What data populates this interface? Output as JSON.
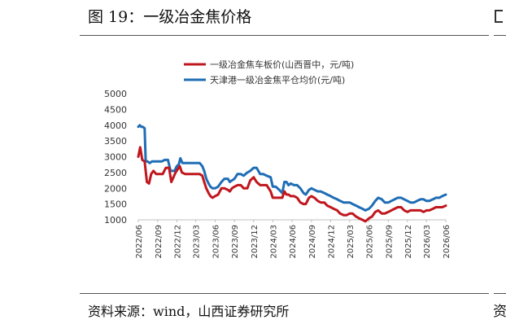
{
  "figure": {
    "title": "图 19：一级冶金焦价格",
    "source": "资料来源：wind，山西证券研究所",
    "edge_glyph": "资"
  },
  "chart_data": {
    "type": "line",
    "title": "",
    "xlabel": "",
    "ylabel": "",
    "ylim": [
      1000,
      5000
    ],
    "yticks": [
      1000,
      1500,
      2000,
      2500,
      3000,
      3500,
      4000,
      4500,
      5000
    ],
    "xlim": [
      "2022-06",
      "2026-06"
    ],
    "xticks": [
      "2022/06",
      "2022/09",
      "2022/12",
      "2023/03",
      "2023/06",
      "2023/09",
      "2023/12",
      "2024/03",
      "2024/06",
      "2024/09",
      "2024/12",
      "2025/03",
      "2025/06",
      "2025/09",
      "2025/12",
      "2026/03",
      "2026/06"
    ],
    "grid": false,
    "legend_position": "top",
    "series": [
      {
        "name": "一级冶金焦车板价(山西晋中，元/吨)",
        "color": "#C0161D",
        "x": [
          "2022-06-01",
          "2022-06-10",
          "2022-06-20",
          "2022-07-01",
          "2022-07-12",
          "2022-07-22",
          "2022-08-01",
          "2022-08-12",
          "2022-08-25",
          "2022-09-10",
          "2022-09-25",
          "2022-10-10",
          "2022-10-25",
          "2022-11-05",
          "2022-11-15",
          "2022-11-25",
          "2022-12-05",
          "2022-12-15",
          "2022-12-25",
          "2023-01-10",
          "2023-02-01",
          "2023-02-20",
          "2023-03-10",
          "2023-03-20",
          "2023-04-01",
          "2023-04-10",
          "2023-04-20",
          "2023-05-01",
          "2023-05-10",
          "2023-05-20",
          "2023-06-01",
          "2023-06-15",
          "2023-07-01",
          "2023-07-15",
          "2023-08-01",
          "2023-08-10",
          "2023-08-20",
          "2023-09-01",
          "2023-09-15",
          "2023-10-01",
          "2023-10-15",
          "2023-11-01",
          "2023-11-15",
          "2023-12-01",
          "2023-12-15",
          "2024-01-01",
          "2024-01-15",
          "2024-02-01",
          "2024-02-20",
          "2024-03-01",
          "2024-03-15",
          "2024-04-01",
          "2024-04-15",
          "2024-04-25",
          "2024-05-05",
          "2024-05-15",
          "2024-05-25",
          "2024-06-10",
          "2024-06-25",
          "2024-07-10",
          "2024-07-25",
          "2024-08-05",
          "2024-08-20",
          "2024-09-01",
          "2024-09-15",
          "2024-10-01",
          "2024-10-15",
          "2024-11-01",
          "2024-11-15",
          "2024-12-01",
          "2024-12-15",
          "2025-01-01",
          "2025-01-15",
          "2025-02-01",
          "2025-02-15",
          "2025-03-01",
          "2025-03-15",
          "2025-04-01",
          "2025-04-15",
          "2025-05-01",
          "2025-05-15",
          "2025-06-01",
          "2025-06-15",
          "2025-07-01",
          "2025-07-15",
          "2025-08-01",
          "2025-08-15",
          "2025-09-01",
          "2025-09-15",
          "2025-10-01",
          "2025-10-15",
          "2025-11-01",
          "2025-11-15",
          "2025-12-01",
          "2025-12-15",
          "2026-01-01",
          "2026-01-15",
          "2026-02-01",
          "2026-02-15",
          "2026-03-01",
          "2026-03-15",
          "2026-04-01",
          "2026-04-15",
          "2026-05-01",
          "2026-05-15",
          "2026-06-01"
        ],
        "y": [
          3000,
          3300,
          2900,
          2850,
          2200,
          2150,
          2450,
          2550,
          2450,
          2450,
          2450,
          2650,
          2650,
          2200,
          2350,
          2500,
          2600,
          2700,
          2500,
          2450,
          2450,
          2450,
          2450,
          2450,
          2400,
          2200,
          2000,
          1850,
          1750,
          1700,
          1750,
          1800,
          2000,
          2000,
          1950,
          1900,
          2000,
          2050,
          2100,
          2100,
          2000,
          2000,
          2250,
          2350,
          2200,
          2100,
          2100,
          2100,
          1900,
          1700,
          1700,
          1700,
          1700,
          1900,
          1800,
          1800,
          1750,
          1750,
          1700,
          1550,
          1500,
          1500,
          1700,
          1750,
          1700,
          1600,
          1550,
          1550,
          1450,
          1400,
          1350,
          1300,
          1200,
          1150,
          1150,
          1200,
          1200,
          1100,
          1050,
          1000,
          950,
          1050,
          1100,
          1250,
          1300,
          1200,
          1200,
          1250,
          1300,
          1350,
          1400,
          1400,
          1300,
          1250,
          1300,
          1300,
          1300,
          1300,
          1250,
          1300,
          1300,
          1350,
          1400,
          1400,
          1400,
          1450
        ]
      },
      {
        "name": "天津港一级冶金焦平仓均价(元/吨)",
        "color": "#1F6DB5",
        "x": [
          "2022-06-01",
          "2022-06-08",
          "2022-06-15",
          "2022-06-22",
          "2022-07-01",
          "2022-07-06",
          "2022-07-15",
          "2022-07-25",
          "2022-08-05",
          "2022-08-20",
          "2022-09-05",
          "2022-09-20",
          "2022-10-05",
          "2022-10-20",
          "2022-11-01",
          "2022-11-10",
          "2022-11-20",
          "2022-12-01",
          "2022-12-10",
          "2022-12-18",
          "2022-12-28",
          "2023-01-10",
          "2023-02-01",
          "2023-02-20",
          "2023-03-10",
          "2023-03-20",
          "2023-04-01",
          "2023-04-10",
          "2023-04-20",
          "2023-05-01",
          "2023-05-10",
          "2023-05-20",
          "2023-06-01",
          "2023-06-15",
          "2023-07-01",
          "2023-07-15",
          "2023-08-01",
          "2023-08-10",
          "2023-08-20",
          "2023-09-01",
          "2023-09-15",
          "2023-10-01",
          "2023-10-15",
          "2023-11-01",
          "2023-11-15",
          "2023-12-01",
          "2023-12-15",
          "2024-01-01",
          "2024-01-15",
          "2024-02-01",
          "2024-02-20",
          "2024-03-01",
          "2024-03-15",
          "2024-04-01",
          "2024-04-15",
          "2024-04-25",
          "2024-05-05",
          "2024-05-15",
          "2024-05-25",
          "2024-06-10",
          "2024-06-25",
          "2024-07-10",
          "2024-07-25",
          "2024-08-05",
          "2024-08-20",
          "2024-09-01",
          "2024-09-15",
          "2024-10-01",
          "2024-10-15",
          "2024-11-01",
          "2024-11-15",
          "2024-12-01",
          "2024-12-15",
          "2025-01-01",
          "2025-01-15",
          "2025-02-01",
          "2025-02-15",
          "2025-03-01",
          "2025-03-15",
          "2025-04-01",
          "2025-04-15",
          "2025-05-01",
          "2025-05-15",
          "2025-06-01",
          "2025-06-15",
          "2025-07-01",
          "2025-07-15",
          "2025-08-01",
          "2025-08-15",
          "2025-09-01",
          "2025-09-15",
          "2025-10-01",
          "2025-10-15",
          "2025-11-01",
          "2025-11-15",
          "2025-12-01",
          "2025-12-15",
          "2026-01-01",
          "2026-01-15",
          "2026-02-01",
          "2026-02-15",
          "2026-03-01",
          "2026-03-15",
          "2026-04-01",
          "2026-04-15",
          "2026-05-01",
          "2026-05-15",
          "2026-06-01"
        ],
        "y": [
          3950,
          4000,
          3950,
          3950,
          3900,
          2850,
          2850,
          2800,
          2850,
          2850,
          2850,
          2850,
          2900,
          2900,
          2550,
          2550,
          2550,
          2700,
          2750,
          2950,
          2800,
          2800,
          2800,
          2800,
          2800,
          2800,
          2700,
          2550,
          2300,
          2150,
          2050,
          2000,
          2000,
          2050,
          2200,
          2300,
          2300,
          2200,
          2250,
          2300,
          2450,
          2450,
          2400,
          2500,
          2550,
          2650,
          2650,
          2450,
          2450,
          2400,
          2350,
          2050,
          2050,
          1950,
          1850,
          2200,
          2200,
          2100,
          2150,
          2100,
          2100,
          2000,
          1850,
          1800,
          1950,
          2000,
          1950,
          1900,
          1900,
          1850,
          1800,
          1750,
          1700,
          1650,
          1600,
          1550,
          1550,
          1550,
          1500,
          1450,
          1400,
          1350,
          1300,
          1350,
          1450,
          1600,
          1700,
          1650,
          1550,
          1550,
          1600,
          1650,
          1700,
          1700,
          1650,
          1600,
          1550,
          1550,
          1600,
          1650,
          1650,
          1600,
          1600,
          1650,
          1700,
          1700,
          1750,
          1800
        ]
      }
    ]
  }
}
